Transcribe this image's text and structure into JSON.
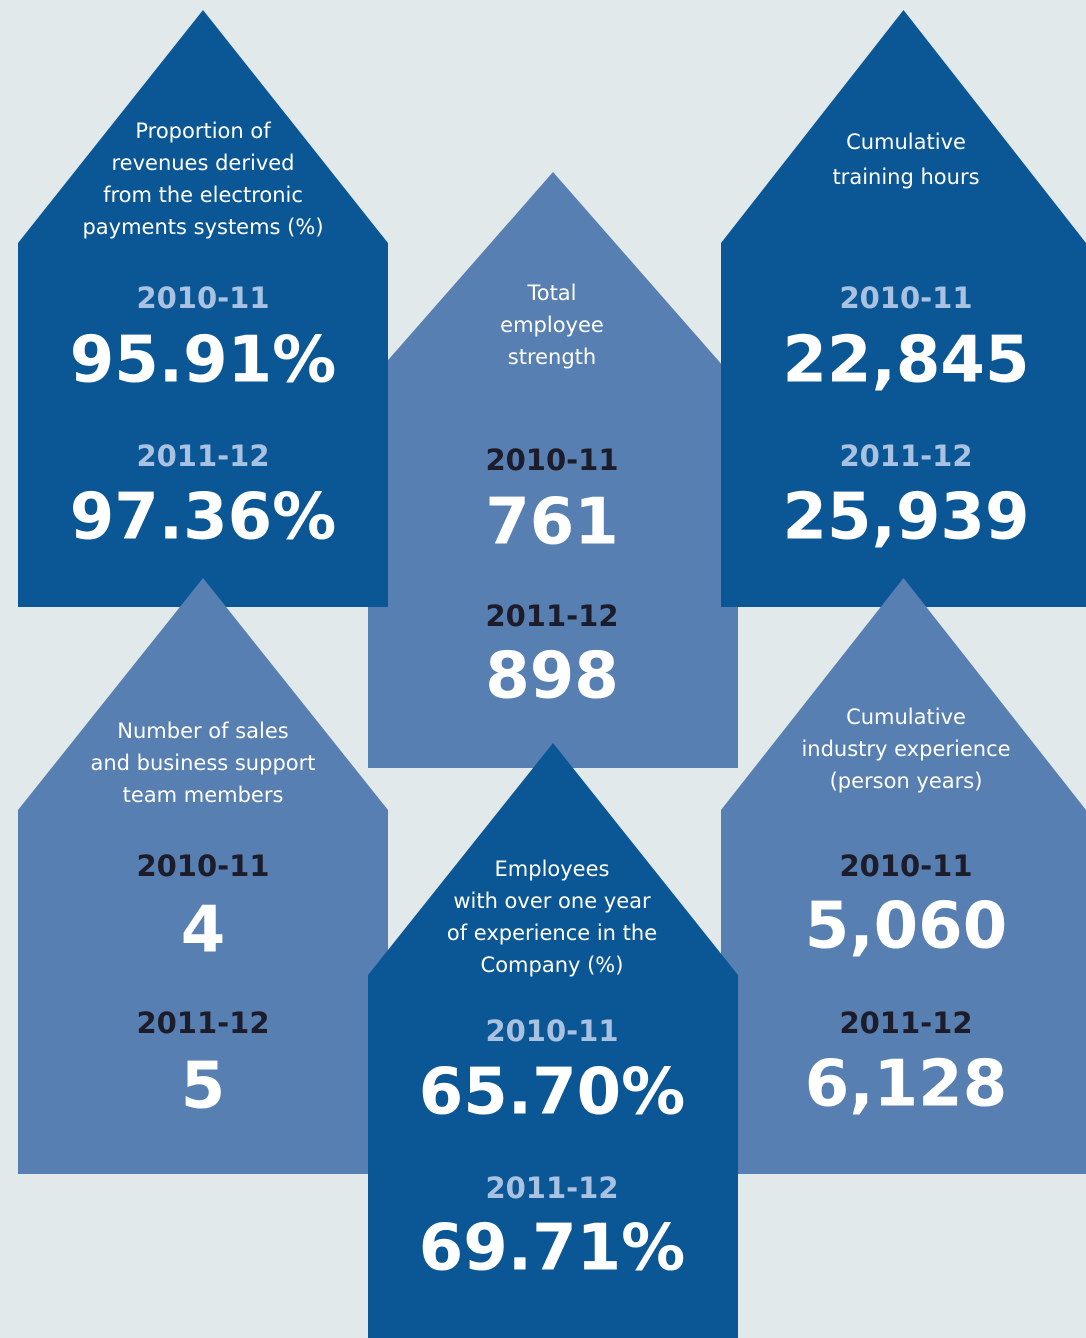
{
  "houses": [
    {
      "label": [
        "Proportion of",
        "revenues derived",
        "from the electronic",
        "payments systems (%)"
      ],
      "years": [
        {
          "year": "2010-11",
          "value": "95.91%"
        },
        {
          "year": "2011-12",
          "value": "97.36%"
        }
      ]
    },
    {
      "label": [
        "Total",
        "employee",
        "strength"
      ],
      "years": [
        {
          "year": "2010-11",
          "value": "761"
        },
        {
          "year": "2011-12",
          "value": "898"
        }
      ]
    },
    {
      "label": [
        "Cumulative",
        "training hours"
      ],
      "years": [
        {
          "year": "2010-11",
          "value": "22,845"
        },
        {
          "year": "2011-12",
          "value": "25,939"
        }
      ]
    },
    {
      "label": [
        "Number of sales",
        "and business support",
        "team members"
      ],
      "years": [
        {
          "year": "2010-11",
          "value": "4"
        },
        {
          "year": "2011-12",
          "value": "5"
        }
      ]
    },
    {
      "label": [
        "Employees",
        "with over one year",
        "of experience in the",
        "Company (%)"
      ],
      "years": [
        {
          "year": "2010-11",
          "value": "65.70%"
        },
        {
          "year": "2011-12",
          "value": "69.71%"
        }
      ]
    },
    {
      "label": [
        "Cumulative",
        "industry experience",
        "(person years)"
      ],
      "years": [
        {
          "year": "2010-11",
          "value": "5,060"
        },
        {
          "year": "2011-12",
          "value": "6,128"
        }
      ]
    }
  ]
}
